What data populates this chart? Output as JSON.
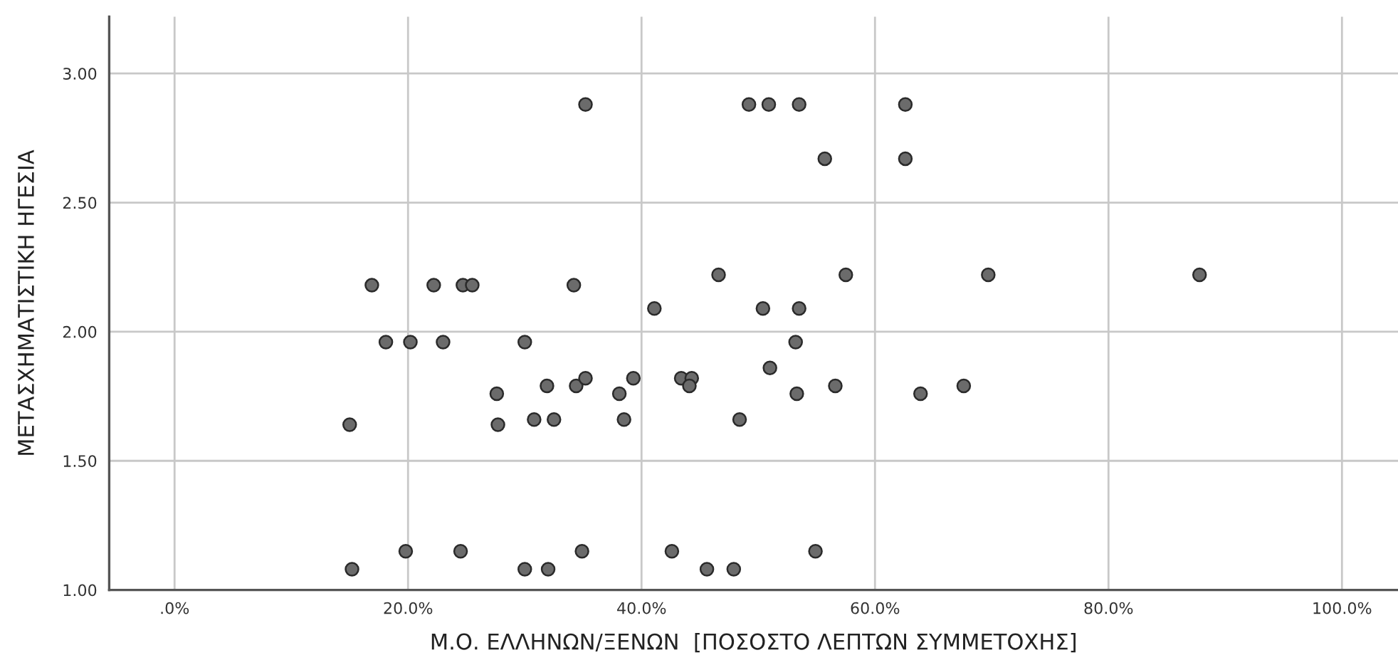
{
  "chart_data": {
    "type": "scatter",
    "xlabel": "Μ.Ο. ΕΛΛΗΝΩΝ/ΞΕΝΩΝ  [ΠΟΣΟΣΤΟ ΛΕΠΤΩΝ ΣΥΜΜΕΤΟΧΗΣ]",
    "ylabel": "ΜΕΤΑΣΧΗΜΑΤΙΣΤΙΚΗ ΗΓΕΣΙΑ",
    "x": [
      16.9,
      22.2,
      24.7,
      25.5,
      34.2,
      18.1,
      20.2,
      23.0,
      30.0,
      27.6,
      31.9,
      15.0,
      27.7,
      30.8,
      32.5,
      19.8,
      24.5,
      15.2,
      30.0,
      32.0,
      35.2,
      49.2,
      50.9,
      53.5,
      62.6,
      55.7,
      62.6,
      46.6,
      57.5,
      69.7,
      87.8,
      41.1,
      50.4,
      53.5,
      53.2,
      51.0,
      34.4,
      35.2,
      39.3,
      43.4,
      44.3,
      44.1,
      38.1,
      53.3,
      56.6,
      63.9,
      67.6,
      38.5,
      48.4,
      34.9,
      42.6,
      54.9,
      45.6,
      47.9
    ],
    "values": [
      2.18,
      2.18,
      2.18,
      2.18,
      2.18,
      1.96,
      1.96,
      1.96,
      1.96,
      1.76,
      1.79,
      1.64,
      1.64,
      1.66,
      1.66,
      1.15,
      1.15,
      1.08,
      1.08,
      1.08,
      2.88,
      2.88,
      2.88,
      2.88,
      2.88,
      2.67,
      2.67,
      2.22,
      2.22,
      2.22,
      2.22,
      2.09,
      2.09,
      2.09,
      1.96,
      1.86,
      1.79,
      1.82,
      1.82,
      1.82,
      1.82,
      1.79,
      1.76,
      1.76,
      1.79,
      1.76,
      1.79,
      1.66,
      1.66,
      1.15,
      1.15,
      1.15,
      1.08,
      1.08
    ],
    "color": "#6b6b6b",
    "marker": "circle",
    "grid": true,
    "xlim": [
      -5.6,
      104.8
    ],
    "xticks": [
      {
        "value": 0,
        "label": ".0%"
      },
      {
        "value": 20,
        "label": "20.0%"
      },
      {
        "value": 40,
        "label": "40.0%"
      },
      {
        "value": 60,
        "label": "60.0%"
      },
      {
        "value": 80,
        "label": "80.0%"
      },
      {
        "value": 100,
        "label": "100.0%"
      }
    ],
    "ylim": [
      1.0,
      3.22
    ],
    "yticks": [
      {
        "value": 1.0,
        "label": "1.00"
      },
      {
        "value": 1.5,
        "label": "1.50"
      },
      {
        "value": 2.0,
        "label": "2.00"
      },
      {
        "value": 2.5,
        "label": "2.50"
      },
      {
        "value": 3.0,
        "label": "3.00"
      }
    ]
  }
}
